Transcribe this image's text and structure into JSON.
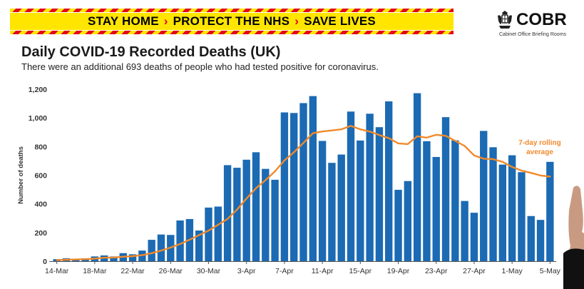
{
  "banner": {
    "items": [
      "STAY HOME",
      "PROTECT THE NHS",
      "SAVE LIVES"
    ],
    "arrow": "›"
  },
  "logo": {
    "name": "COBR",
    "subtitle": "Cabinet Office Briefing Rooms",
    "icon": "royal-crest-icon"
  },
  "chart_data": {
    "type": "bar",
    "title": "Daily COVID-19 Recorded Deaths (UK)",
    "subtitle": "There were an additional 693 deaths of people who had tested positive for coronavirus.",
    "ylabel": "Number of deaths",
    "xlabel": "",
    "ylim": [
      0,
      1200
    ],
    "yticks": [
      "0",
      "200",
      "400",
      "600",
      "800",
      "1,000",
      "1,200"
    ],
    "xticks": [
      "14-Mar",
      "18-Mar",
      "22-Mar",
      "26-Mar",
      "30-Mar",
      "3-Apr",
      "7-Apr",
      "11-Apr",
      "15-Apr",
      "19-Apr",
      "23-Apr",
      "27-Apr",
      "1-May",
      "5-May"
    ],
    "categories": [
      "14-Mar",
      "15-Mar",
      "16-Mar",
      "17-Mar",
      "18-Mar",
      "19-Mar",
      "20-Mar",
      "21-Mar",
      "22-Mar",
      "23-Mar",
      "24-Mar",
      "25-Mar",
      "26-Mar",
      "27-Mar",
      "28-Mar",
      "29-Mar",
      "30-Mar",
      "31-Mar",
      "1-Apr",
      "2-Apr",
      "3-Apr",
      "4-Apr",
      "5-Apr",
      "6-Apr",
      "7-Apr",
      "8-Apr",
      "9-Apr",
      "10-Apr",
      "11-Apr",
      "12-Apr",
      "13-Apr",
      "14-Apr",
      "15-Apr",
      "16-Apr",
      "17-Apr",
      "18-Apr",
      "19-Apr",
      "20-Apr",
      "21-Apr",
      "22-Apr",
      "23-Apr",
      "24-Apr",
      "25-Apr",
      "26-Apr",
      "27-Apr",
      "28-Apr",
      "29-Apr",
      "30-Apr",
      "1-May",
      "2-May",
      "3-May",
      "4-May",
      "5-May"
    ],
    "series": [
      {
        "type": "bar",
        "color": "#1b6ab3",
        "values": [
          14,
          20,
          14,
          20,
          33,
          40,
          33,
          56,
          48,
          74,
          149,
          186,
          183,
          284,
          294,
          214,
          374,
          381,
          670,
          652,
          708,
          760,
          644,
          568,
          1038,
          1034,
          1103,
          1152,
          839,
          686,
          744,
          1044,
          842,
          1029,
          935,
          1115,
          498,
          559,
          1172,
          837,
          727,
          1005,
          843,
          420,
          338,
          909,
          795,
          674,
          739,
          621,
          315,
          288,
          693
        ]
      },
      {
        "type": "line",
        "name": "7-day rolling average",
        "color": "#f08a2c",
        "values": [
          8,
          10,
          12,
          14,
          18,
          24,
          26,
          31,
          35,
          42,
          56,
          74,
          95,
          120,
          150,
          182,
          213,
          254,
          295,
          360,
          437,
          509,
          565,
          627,
          703,
          760,
          825,
          893,
          905,
          912,
          920,
          944,
          920,
          904,
          880,
          859,
          822,
          817,
          872,
          862,
          882,
          875,
          840,
          804,
          738,
          715,
          712,
          693,
          658,
          632,
          616,
          598,
          590
        ]
      }
    ],
    "annotation": "7-day rolling average",
    "grid": false,
    "legend": "annotation"
  }
}
